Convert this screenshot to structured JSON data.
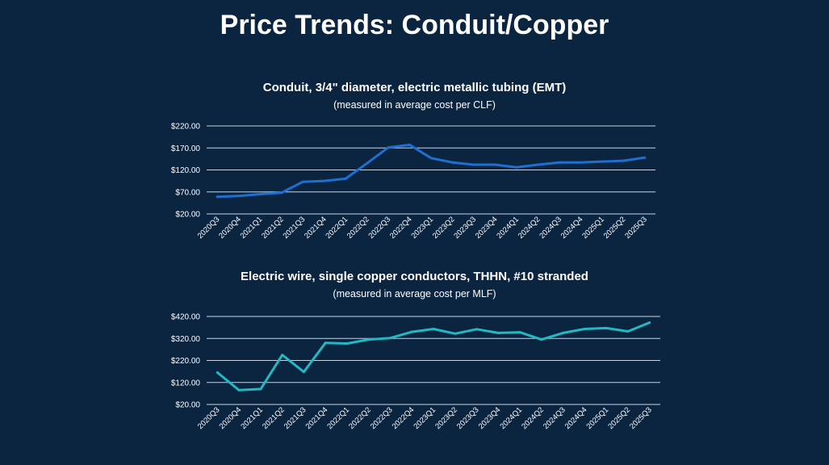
{
  "slide": {
    "title": "Price Trends: Conduit/Copper"
  },
  "chart_data": [
    {
      "type": "line",
      "title": "Conduit, 3/4\" diameter, electric metallic tubing (EMT)",
      "subtitle": "(measured in average cost per CLF)",
      "xlabel": "",
      "ylabel": "",
      "ylim": [
        20,
        220
      ],
      "yticks": [
        "$20.00",
        "$70.00",
        "$120.00",
        "$170.00",
        "$220.00"
      ],
      "ytick_values": [
        20,
        70,
        120,
        170,
        220
      ],
      "grid": true,
      "color": "#1f6fd1",
      "categories": [
        "2020Q3",
        "2020Q4",
        "2021Q1",
        "2021Q2",
        "2021Q3",
        "2021Q4",
        "2022Q1",
        "2022Q2",
        "2022Q3",
        "2022Q4",
        "2023Q1",
        "2023Q2",
        "2023Q3",
        "2023Q4",
        "2024Q1",
        "2024Q2",
        "2024Q3",
        "2024Q4",
        "2025Q1",
        "2025Q2",
        "2025Q3"
      ],
      "series": [
        {
          "values": [
            59,
            61,
            65,
            68,
            93,
            95,
            100,
            135,
            171,
            177,
            147,
            137,
            132,
            132,
            126,
            132,
            137,
            137,
            139,
            141,
            148
          ]
        }
      ]
    },
    {
      "type": "line",
      "title": "Electric wire, single copper conductors, THHN, #10 stranded",
      "subtitle": "(measured in average cost per MLF)",
      "xlabel": "",
      "ylabel": "",
      "ylim": [
        20,
        420
      ],
      "yticks": [
        "$20.00",
        "$120.00",
        "$220.00",
        "$320.00",
        "$420.00"
      ],
      "ytick_values": [
        20,
        120,
        220,
        320,
        420
      ],
      "grid": true,
      "color": "#22b8c4",
      "categories": [
        "2020Q3",
        "2020Q4",
        "2021Q1",
        "2021Q2",
        "2021Q3",
        "2021Q4",
        "2022Q1",
        "2022Q2",
        "2022Q3",
        "2022Q4",
        "2023Q1",
        "2023Q2",
        "2023Q3",
        "2023Q4",
        "2024Q1",
        "2024Q2",
        "2024Q3",
        "2024Q4",
        "2025Q1",
        "2025Q2",
        "2025Q3"
      ],
      "series": [
        {
          "values": [
            165,
            85,
            90,
            245,
            168,
            300,
            297,
            315,
            322,
            350,
            363,
            342,
            362,
            345,
            348,
            315,
            345,
            363,
            367,
            352,
            392
          ]
        }
      ]
    }
  ]
}
